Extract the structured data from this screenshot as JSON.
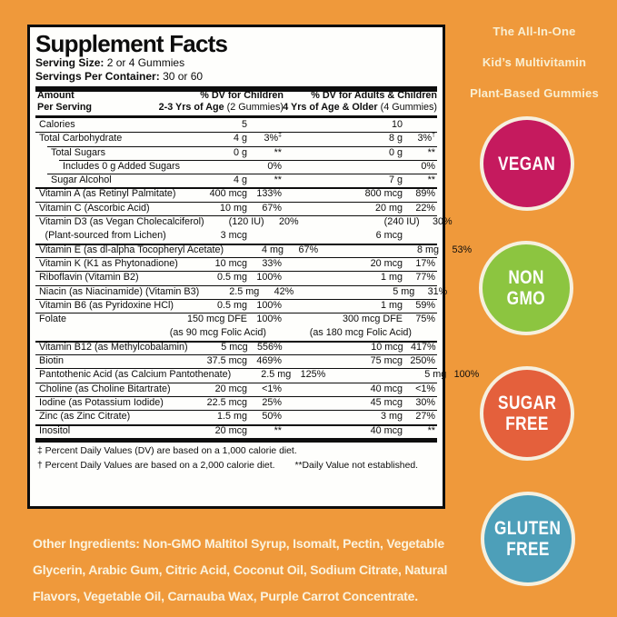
{
  "colors": {
    "background": "#EF993B",
    "label_border": "#0d0d0d",
    "label_bg": "#FEFEFC",
    "badge_ring": "#F6F0DF",
    "tagline_text": "#F9EFD2"
  },
  "tagline": {
    "line1": "The All-In-One",
    "line2": "Kid’s Multivitamin",
    "line3": "Plant-Based Gummies"
  },
  "label": {
    "title": "Supplement Facts",
    "serving_size_label": "Serving Size:",
    "serving_size_value": "2 or 4 Gummies",
    "servings_label": "Servings Per Container:",
    "servings_value": "30 or 60",
    "columns": {
      "amount_l1": "Amount",
      "amount_l2": "Per Serving",
      "children_l1": "% DV for Children",
      "children_l2": "2-3 Yrs of Age",
      "children_l2p": "(2 Gummies)",
      "adults_l1": "% DV for Adults & Children",
      "adults_l2": "4 Yrs of Age & Older",
      "adults_l2p": "(4 Gummies)"
    },
    "rows": [
      {
        "name": "Calories",
        "amt1": "5",
        "pct1": "",
        "amt2": "10",
        "pct2": "",
        "indent": 0,
        "sep": "none"
      },
      {
        "name": "Total Carbohydrate",
        "amt1": "4 g",
        "pct1": "3%",
        "sup1": "‡",
        "amt2": "8 g",
        "pct2": "3%",
        "sup2": "†",
        "indent": 0,
        "sep": "thin"
      },
      {
        "name": "Total Sugars",
        "amt1": "0 g",
        "pct1": "**",
        "amt2": "0 g",
        "pct2": "**",
        "indent": 1,
        "sep": "thin"
      },
      {
        "name": "Includes 0 g Added Sugars",
        "amt1": "",
        "pct1": "0%",
        "amt2": "",
        "pct2": "0%",
        "indent": 2,
        "sep": "thin"
      },
      {
        "name": "Sugar Alcohol",
        "amt1": "4 g",
        "pct1": "**",
        "amt2": "7 g",
        "pct2": "**",
        "indent": 1,
        "sep": "thin"
      },
      {
        "name": "Vitamin A (as Retinyl Palmitate)",
        "amt1": "400 mcg",
        "pct1": "133%",
        "amt2": "800 mcg",
        "pct2": "89%",
        "indent": 0,
        "sep": "med"
      },
      {
        "name": "Vitamin C (Ascorbic Acid)",
        "amt1": "10 mg",
        "pct1": "67%",
        "amt2": "20 mg",
        "pct2": "22%",
        "indent": 0,
        "sep": "thin"
      },
      {
        "name": "Vitamin D3 (as Vegan Cholecalciferol)",
        "amt1": "(120 IU)",
        "pct1": "20%",
        "amt2": "(240 IU)",
        "pct2": "30%",
        "indent": 0,
        "sep": "thin"
      },
      {
        "name": "(Plant-sourced from Lichen)",
        "amt1": "3 mcg",
        "pct1": "",
        "amt2": "6 mcg",
        "pct2": "",
        "indent": 0.5,
        "sep": "none"
      },
      {
        "name": "Vitamin E (as dl-alpha Tocopheryl Acetate)",
        "amt1": "4 mg",
        "pct1": "67%",
        "amt2": "8 mg",
        "pct2": "53%",
        "indent": 0,
        "sep": "med"
      },
      {
        "name": "Vitamin K (K1 as Phytonadione)",
        "amt1": "10 mcg",
        "pct1": "33%",
        "amt2": "20 mcg",
        "pct2": "17%",
        "indent": 0,
        "sep": "thin"
      },
      {
        "name": "Riboflavin (Vitamin B2)",
        "amt1": "0.5 mg",
        "pct1": "100%",
        "amt2": "1 mg",
        "pct2": "77%",
        "indent": 0,
        "sep": "thin"
      },
      {
        "name": "Niacin (as Niacinamide) (Vitamin B3)",
        "amt1": "2.5 mg",
        "pct1": "42%",
        "amt2": "5 mg",
        "pct2": "31%",
        "indent": 0,
        "sep": "thin"
      },
      {
        "name": "Vitamin B6 (as Pyridoxine HCl)",
        "amt1": "0.5 mg",
        "pct1": "100%",
        "amt2": "1 mg",
        "pct2": "59%",
        "indent": 0,
        "sep": "thin"
      },
      {
        "name": "Folate",
        "amt1": "150 mcg DFE",
        "pct1": "100%",
        "amt2": "300 mcg DFE",
        "pct2": "75%",
        "indent": 0,
        "sep": "thin"
      },
      {
        "type": "span",
        "left": "(as 90 mcg Folic Acid)",
        "right": "(as 180 mcg Folic Acid)",
        "sep": "none"
      },
      {
        "name": "Vitamin B12 (as Methylcobalamin)",
        "amt1": "5 mcg",
        "pct1": "556%",
        "amt2": "10 mcg",
        "pct2": "417%",
        "indent": 0,
        "sep": "med"
      },
      {
        "name": "Biotin",
        "amt1": "37.5 mcg",
        "pct1": "469%",
        "amt2": "75 mcg",
        "pct2": "250%",
        "indent": 0,
        "sep": "thin"
      },
      {
        "name": "Pantothenic Acid (as Calcium Pantothenate)",
        "amt1": "2.5 mg",
        "pct1": "125%",
        "amt2": "5 mg",
        "pct2": "100%",
        "indent": 0,
        "sep": "thin"
      },
      {
        "name": "Choline (as Choline Bitartrate)",
        "amt1": "20 mcg",
        "pct1": "<1%",
        "amt2": "40 mcg",
        "pct2": "<1%",
        "indent": 0,
        "sep": "thin"
      },
      {
        "name": "Iodine (as Potassium Iodide)",
        "amt1": "22.5 mcg",
        "pct1": "25%",
        "amt2": "45 mcg",
        "pct2": "30%",
        "indent": 0,
        "sep": "thin"
      },
      {
        "name": "Zinc (as Zinc Citrate)",
        "amt1": "1.5 mg",
        "pct1": "50%",
        "amt2": "3 mg",
        "pct2": "27%",
        "indent": 0,
        "sep": "thin"
      },
      {
        "name": "Inositol",
        "amt1": "20 mcg",
        "pct1": "**",
        "amt2": "40 mcg",
        "pct2": "**",
        "indent": 0,
        "sep": "med"
      }
    ],
    "footnotes": {
      "line1": "‡ Percent Daily Values (DV) are based on a 1,000 calorie diet.",
      "line2_left": "† Percent Daily Values are based on a 2,000 calorie diet.",
      "line2_right": "**Daily Value not established."
    }
  },
  "badges": [
    {
      "id": "vegan",
      "lines": [
        "VEGAN"
      ],
      "color": "#C51A5E"
    },
    {
      "id": "non-gmo",
      "lines": [
        "NON",
        "GMO"
      ],
      "color": "#8CC540"
    },
    {
      "id": "sugar-free",
      "lines": [
        "SUGAR",
        "FREE"
      ],
      "color": "#E4603C"
    },
    {
      "id": "gluten-free",
      "lines": [
        "GLUTEN",
        "FREE"
      ],
      "color": "#4D9FB9"
    }
  ],
  "other_ingredients": "Other Ingredients: Non-GMO Maltitol Syrup, Isomalt, Pectin, Vegetable Glycerin, Arabic Gum, Citric Acid, Coconut Oil, Sodium Citrate, Natural Flavors, Vegetable Oil, Carnauba Wax, Purple Carrot Concentrate."
}
